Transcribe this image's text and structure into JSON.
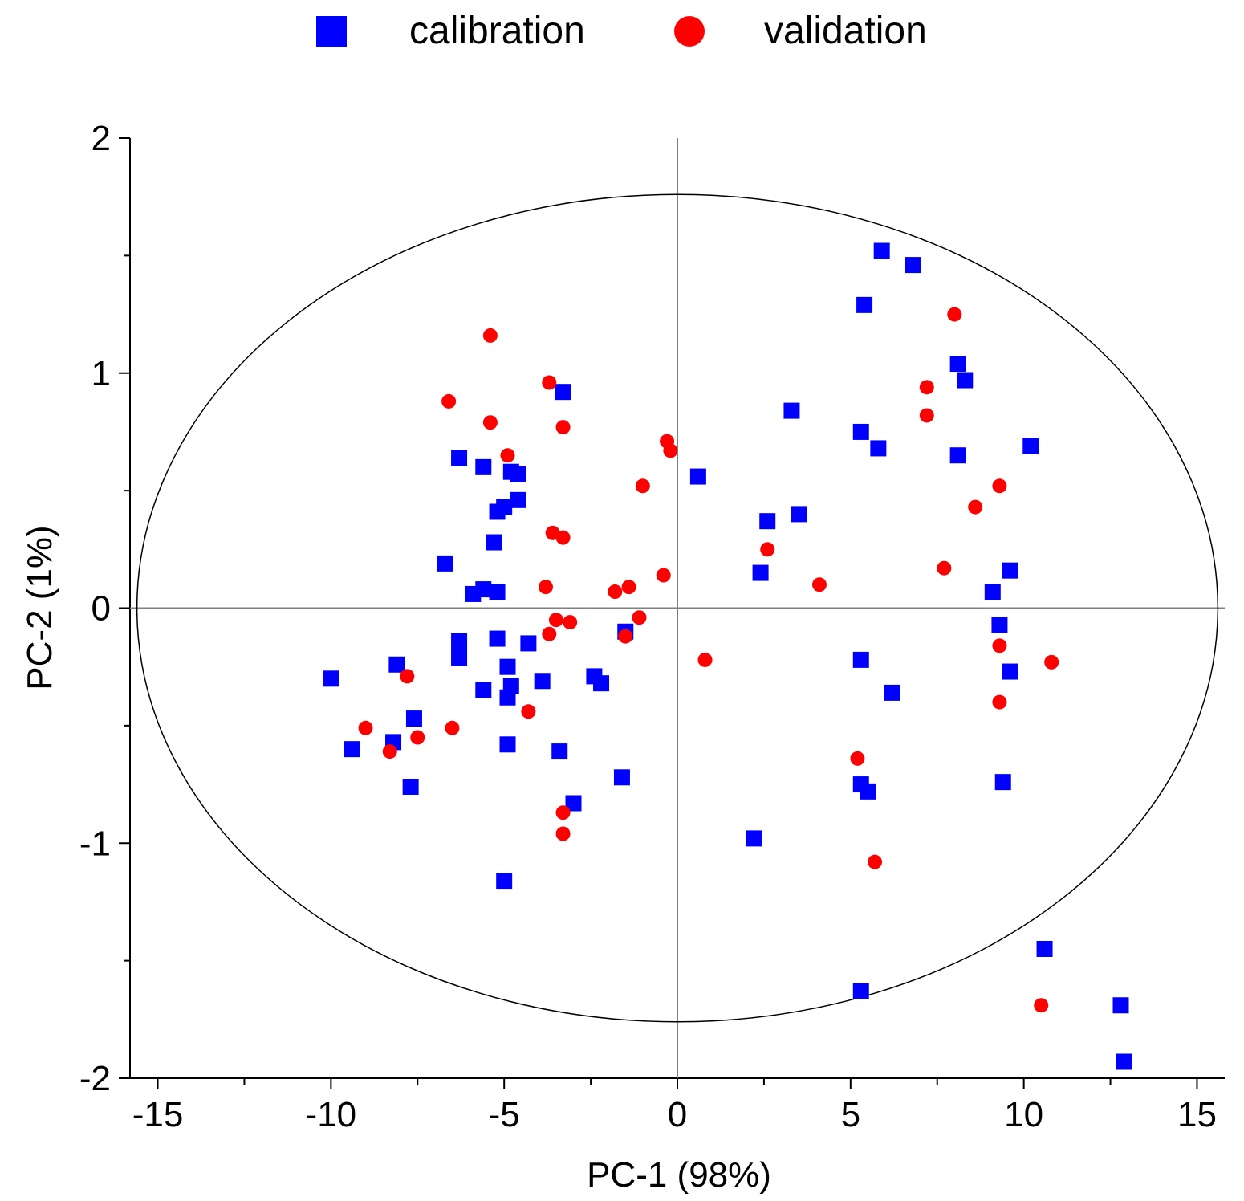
{
  "chart_data": {
    "type": "scatter",
    "title": "",
    "xlabel": "PC-1 (98%)",
    "ylabel": "PC-2 (1%)",
    "xlim": [
      -15.8,
      15.8
    ],
    "ylim": [
      -2,
      2
    ],
    "xticks": [
      -15,
      -10,
      -5,
      0,
      5,
      10,
      15
    ],
    "xtick_labels": [
      "-15",
      "-10",
      "-5",
      "0",
      "5",
      "10",
      "15"
    ],
    "yticks": [
      -2,
      -1,
      0,
      1,
      2
    ],
    "ytick_labels": [
      "-2",
      "-1",
      "0",
      "1",
      "2"
    ],
    "reference_lines": {
      "x": 0,
      "y": 0
    },
    "ellipse": {
      "cx": 0,
      "cy": 0,
      "rx": 15.6,
      "ry": 1.76
    },
    "legend_position": "top-center",
    "series": [
      {
        "name": "calibration",
        "marker": "square",
        "color": "#0000ff",
        "points": [
          [
            5.9,
            1.52
          ],
          [
            6.8,
            1.46
          ],
          [
            5.4,
            1.29
          ],
          [
            8.1,
            1.04
          ],
          [
            8.3,
            0.97
          ],
          [
            -3.3,
            0.92
          ],
          [
            3.3,
            0.84
          ],
          [
            5.3,
            0.75
          ],
          [
            5.8,
            0.68
          ],
          [
            10.2,
            0.69
          ],
          [
            8.1,
            0.65
          ],
          [
            -6.3,
            0.64
          ],
          [
            -5.6,
            0.6
          ],
          [
            -4.8,
            0.58
          ],
          [
            -4.6,
            0.57
          ],
          [
            0.6,
            0.56
          ],
          [
            -4.6,
            0.46
          ],
          [
            -5.0,
            0.43
          ],
          [
            -5.2,
            0.41
          ],
          [
            3.5,
            0.4
          ],
          [
            2.6,
            0.37
          ],
          [
            -5.3,
            0.28
          ],
          [
            -6.7,
            0.19
          ],
          [
            2.4,
            0.15
          ],
          [
            9.6,
            0.16
          ],
          [
            -5.6,
            0.08
          ],
          [
            -5.2,
            0.07
          ],
          [
            -5.9,
            0.06
          ],
          [
            9.1,
            0.07
          ],
          [
            9.3,
            -0.07
          ],
          [
            -1.5,
            -0.1
          ],
          [
            -6.3,
            -0.14
          ],
          [
            -5.2,
            -0.13
          ],
          [
            -4.3,
            -0.15
          ],
          [
            -6.3,
            -0.21
          ],
          [
            5.3,
            -0.22
          ],
          [
            -8.1,
            -0.24
          ],
          [
            -4.9,
            -0.25
          ],
          [
            9.6,
            -0.27
          ],
          [
            -2.4,
            -0.29
          ],
          [
            -10.0,
            -0.3
          ],
          [
            -3.9,
            -0.31
          ],
          [
            -2.2,
            -0.32
          ],
          [
            -4.8,
            -0.33
          ],
          [
            -5.6,
            -0.35
          ],
          [
            6.2,
            -0.36
          ],
          [
            -4.9,
            -0.38
          ],
          [
            -7.6,
            -0.47
          ],
          [
            -8.2,
            -0.57
          ],
          [
            -4.9,
            -0.58
          ],
          [
            -9.4,
            -0.6
          ],
          [
            -3.4,
            -0.61
          ],
          [
            -1.6,
            -0.72
          ],
          [
            9.4,
            -0.74
          ],
          [
            5.3,
            -0.75
          ],
          [
            5.5,
            -0.78
          ],
          [
            -7.7,
            -0.76
          ],
          [
            -3.0,
            -0.83
          ],
          [
            2.2,
            -0.98
          ],
          [
            -5.0,
            -1.16
          ],
          [
            10.6,
            -1.45
          ],
          [
            5.3,
            -1.63
          ],
          [
            12.8,
            -1.69
          ],
          [
            12.9,
            -1.93
          ]
        ]
      },
      {
        "name": "validation",
        "marker": "circle",
        "color": "#ff0000",
        "points": [
          [
            8.0,
            1.25
          ],
          [
            -5.4,
            1.16
          ],
          [
            -3.7,
            0.96
          ],
          [
            7.2,
            0.94
          ],
          [
            -6.6,
            0.88
          ],
          [
            7.2,
            0.82
          ],
          [
            -5.4,
            0.79
          ],
          [
            -3.3,
            0.77
          ],
          [
            -0.3,
            0.71
          ],
          [
            -0.2,
            0.67
          ],
          [
            -4.9,
            0.65
          ],
          [
            9.3,
            0.52
          ],
          [
            -1.0,
            0.52
          ],
          [
            8.6,
            0.43
          ],
          [
            -3.6,
            0.32
          ],
          [
            -3.3,
            0.3
          ],
          [
            2.6,
            0.25
          ],
          [
            7.7,
            0.17
          ],
          [
            -0.4,
            0.14
          ],
          [
            4.1,
            0.1
          ],
          [
            -3.8,
            0.09
          ],
          [
            -1.4,
            0.09
          ],
          [
            -1.8,
            0.07
          ],
          [
            -1.1,
            -0.04
          ],
          [
            -3.5,
            -0.05
          ],
          [
            -3.1,
            -0.06
          ],
          [
            -3.7,
            -0.11
          ],
          [
            -1.5,
            -0.12
          ],
          [
            9.3,
            -0.16
          ],
          [
            0.8,
            -0.22
          ],
          [
            10.8,
            -0.23
          ],
          [
            -7.8,
            -0.29
          ],
          [
            9.3,
            -0.4
          ],
          [
            -4.3,
            -0.44
          ],
          [
            -9.0,
            -0.51
          ],
          [
            -6.5,
            -0.51
          ],
          [
            -7.5,
            -0.55
          ],
          [
            -8.3,
            -0.61
          ],
          [
            5.2,
            -0.64
          ],
          [
            -3.3,
            -0.87
          ],
          [
            -3.3,
            -0.96
          ],
          [
            5.7,
            -1.08
          ],
          [
            10.5,
            -1.69
          ]
        ]
      }
    ]
  }
}
